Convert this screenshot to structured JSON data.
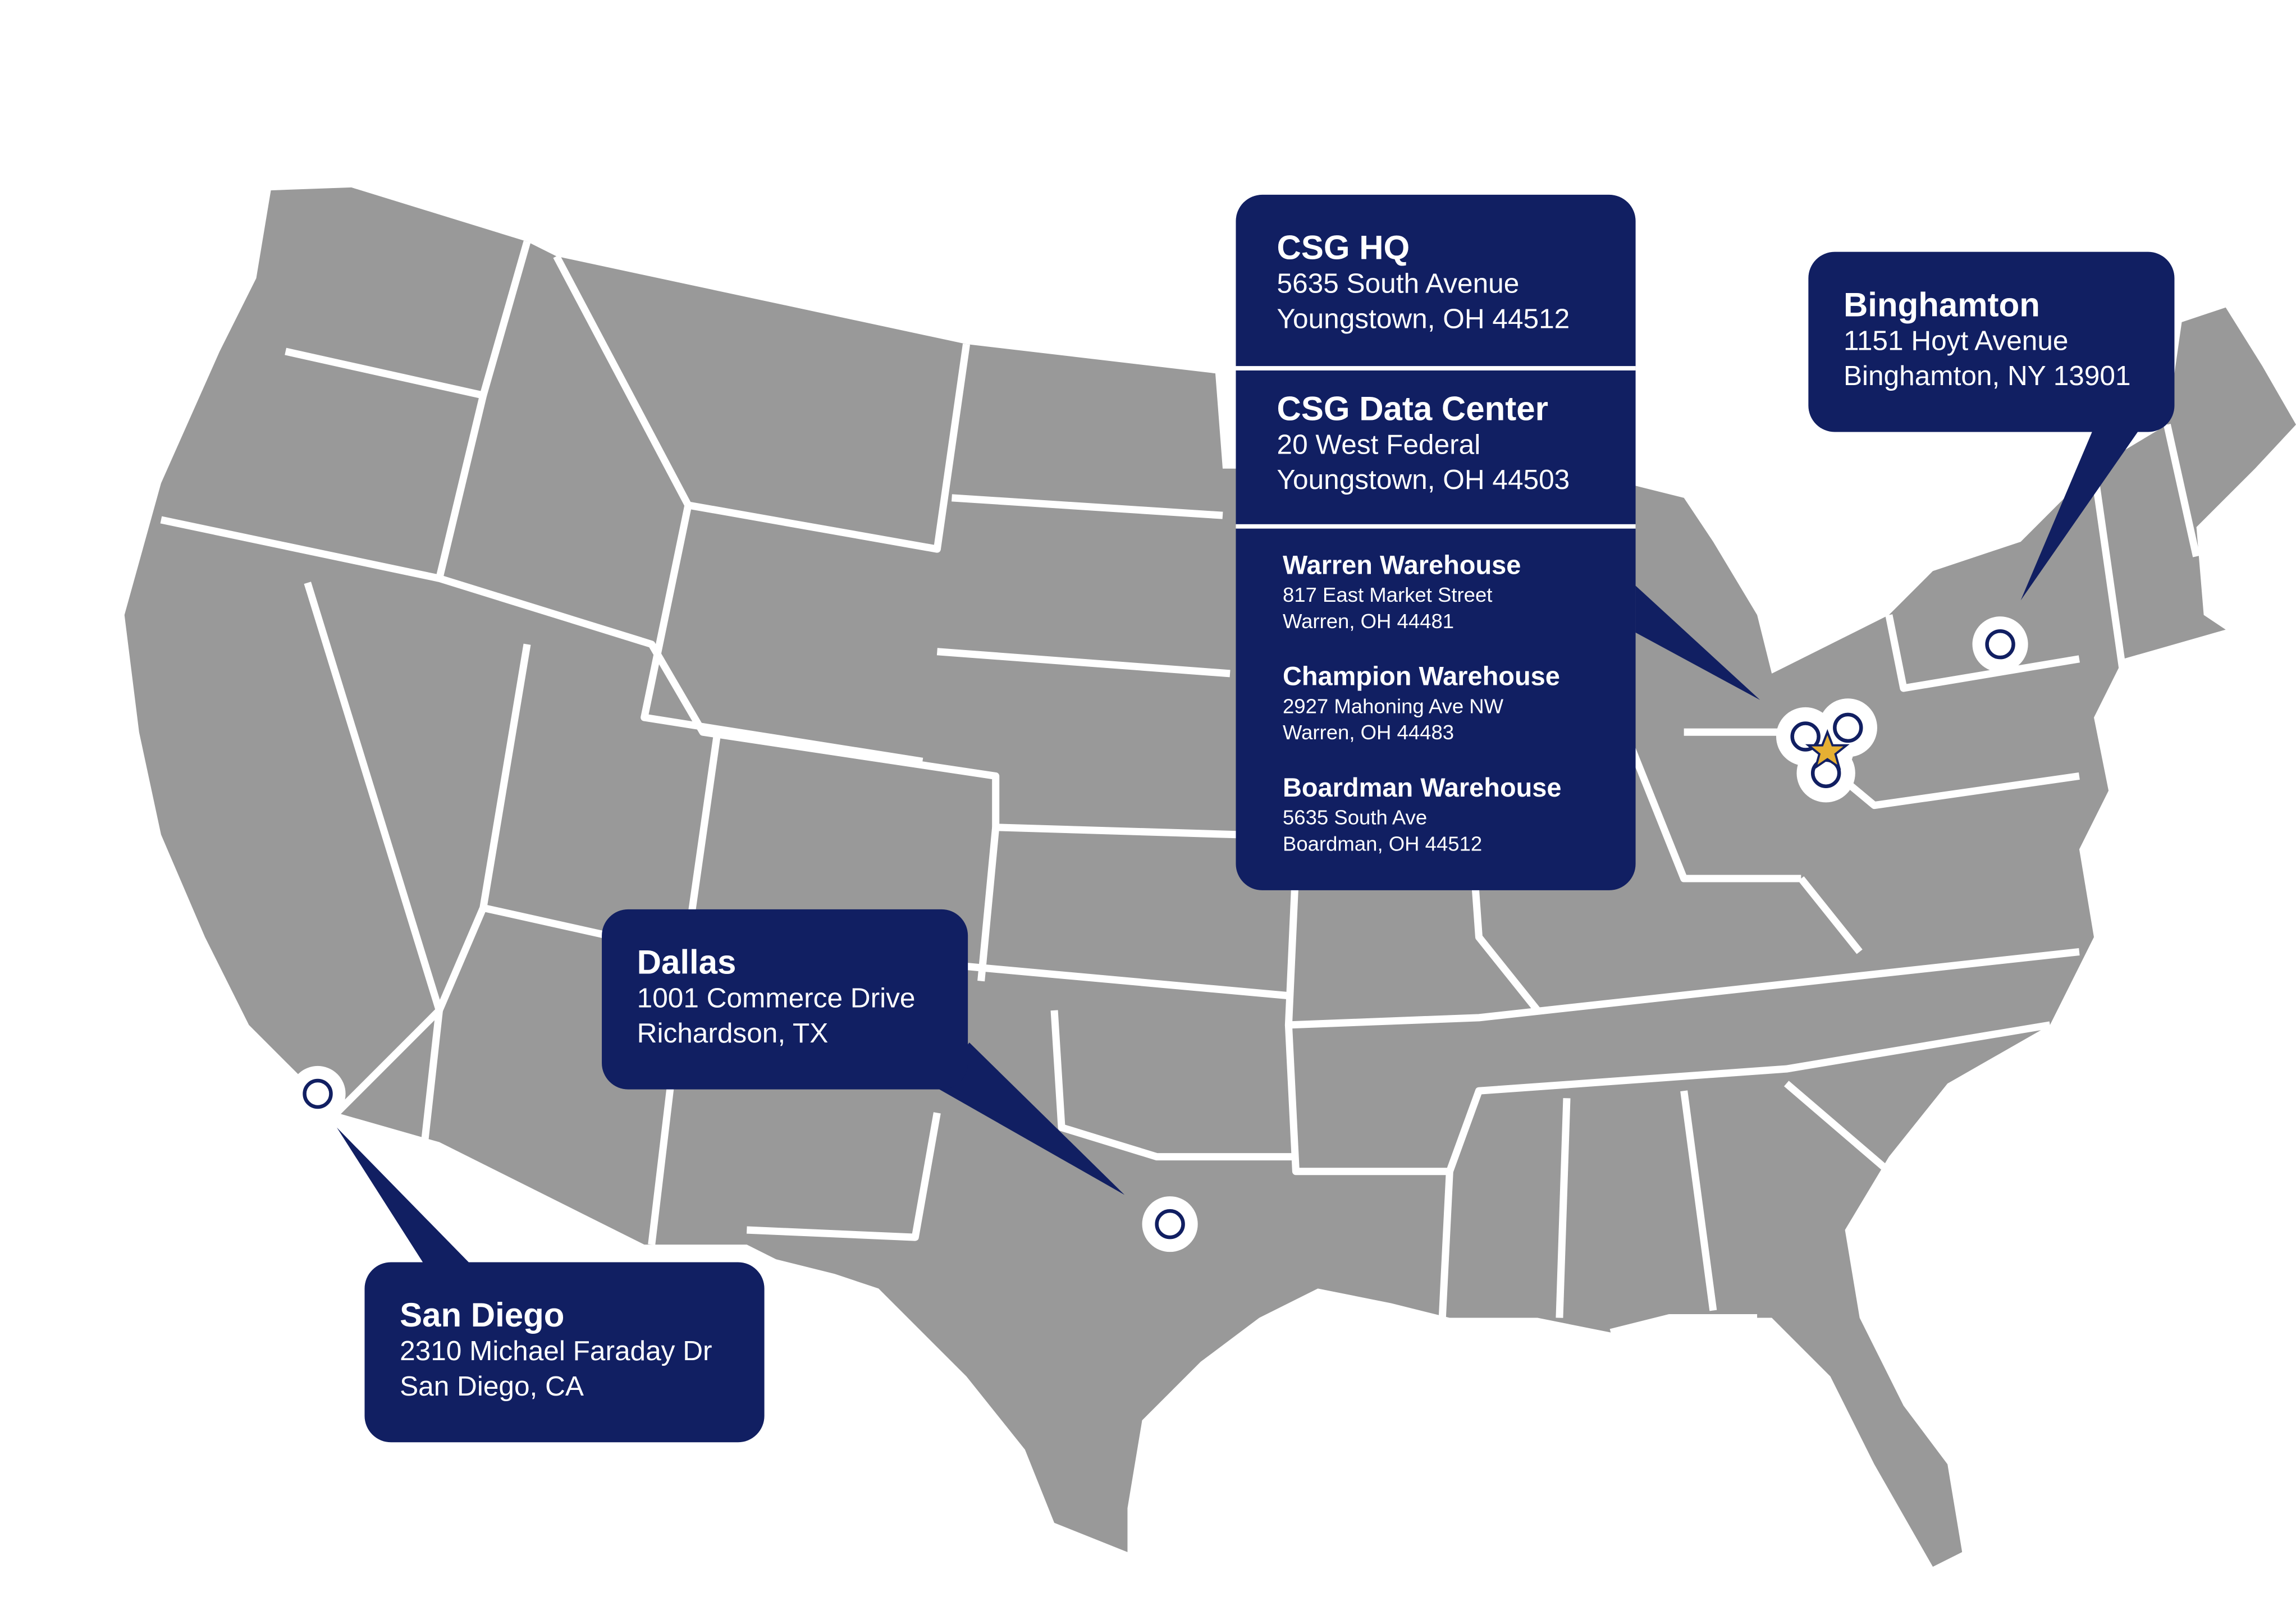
{
  "colors": {
    "land": "#999999",
    "borders": "#ffffff",
    "callout": "#111f62",
    "marker": "#111f62",
    "hq_star": "#e6b033"
  },
  "locations": {
    "hq": {
      "name": "CSG HQ",
      "line1": "5635 South Avenue",
      "line2": "Youngstown, OH 44512"
    },
    "data_center": {
      "name": "CSG Data Center",
      "line1": "20 West Federal",
      "line2": "Youngstown, OH 44503"
    },
    "warehouses": [
      {
        "name": "Warren Warehouse",
        "line1": "817 East Market Street",
        "line2": "Warren, OH 44481"
      },
      {
        "name": "Champion Warehouse",
        "line1": "2927 Mahoning Ave NW",
        "line2": "Warren, OH 44483"
      },
      {
        "name": "Boardman Warehouse",
        "line1": "5635 South Ave",
        "line2": "Boardman, OH 44512"
      }
    ],
    "binghamton": {
      "name": "Binghamton",
      "line1": "1151 Hoyt Avenue",
      "line2": "Binghamton, NY 13901"
    },
    "dallas": {
      "name": "Dallas",
      "line1": "1001 Commerce Drive",
      "line2": "Richardson, TX"
    },
    "san_diego": {
      "name": "San Diego",
      "line1": "2310 Michael Faraday Dr",
      "line2": "San Diego, CA"
    }
  }
}
